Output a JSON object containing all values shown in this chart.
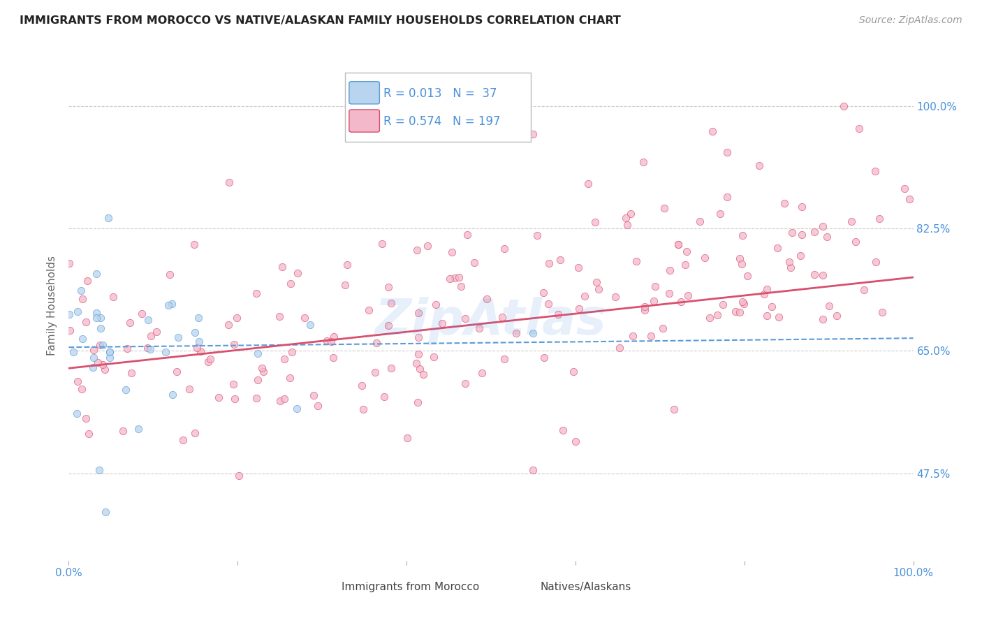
{
  "title": "IMMIGRANTS FROM MOROCCO VS NATIVE/ALASKAN FAMILY HOUSEHOLDS CORRELATION CHART",
  "source": "Source: ZipAtlas.com",
  "ylabel": "Family Households",
  "ytick_labels": [
    "100.0%",
    "82.5%",
    "65.0%",
    "47.5%"
  ],
  "ytick_values": [
    1.0,
    0.825,
    0.65,
    0.475
  ],
  "legend_entries": [
    {
      "label": "R = 0.013",
      "N": "N =  37",
      "color": "#b8d4ee",
      "line_color": "#5b9bd5"
    },
    {
      "label": "R = 0.574",
      "N": "N = 197",
      "color": "#f4b8cb",
      "line_color": "#d94f6e"
    }
  ],
  "morocco_R": 0.013,
  "morocco_N": 37,
  "native_R": 0.574,
  "native_N": 197,
  "xlim": [
    0.0,
    1.0
  ],
  "ylim": [
    0.35,
    1.08
  ],
  "scatter_alpha": 0.75,
  "scatter_size": 55,
  "bg_color": "#ffffff",
  "grid_color": "#cccccc",
  "title_color": "#222222",
  "axis_color": "#4a90d9",
  "watermark": "ZipAtlas",
  "watermark_color": "#4a90d9",
  "mor_trend_start_y": 0.655,
  "mor_trend_end_y": 0.668,
  "nat_trend_start_y": 0.625,
  "nat_trend_end_y": 0.755
}
